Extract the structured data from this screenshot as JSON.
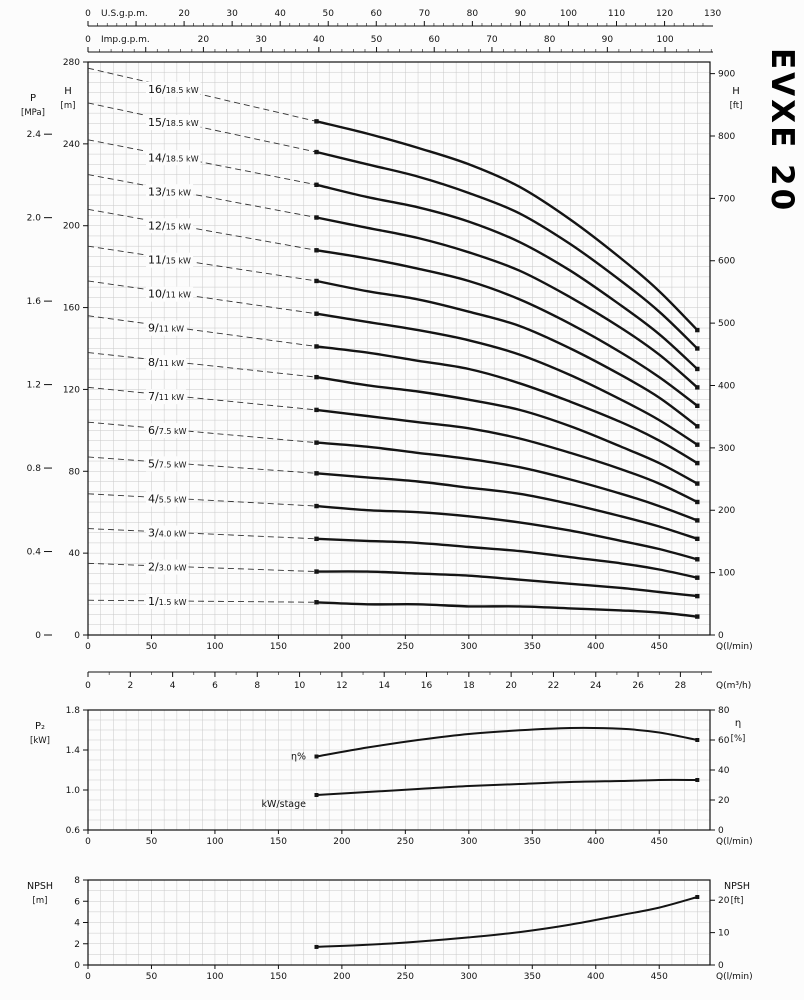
{
  "title": "EVXE 20",
  "chart_data": [
    {
      "name": "head-capacity-curves",
      "type": "line",
      "x": {
        "label": "Q(l/min)",
        "min": 0,
        "max": 490,
        "ticks": [
          0,
          50,
          100,
          150,
          200,
          250,
          300,
          350,
          400,
          450
        ]
      },
      "x_m3h": {
        "label": "Q(m³/h)",
        "lmin_per_unit": 16.667,
        "ticks": [
          0,
          2,
          4,
          6,
          8,
          10,
          12,
          14,
          16,
          18,
          20,
          22,
          24,
          26,
          28
        ]
      },
      "x_usgpm": {
        "label": "U.S.g.p.m.",
        "lmin_per_unit": 3.785,
        "ticks": [
          0,
          20,
          30,
          40,
          50,
          60,
          70,
          80,
          90,
          100,
          110,
          120,
          130
        ]
      },
      "x_impgpm": {
        "label": "Imp.g.p.m.",
        "lmin_per_unit": 4.546,
        "ticks": [
          0,
          20,
          30,
          40,
          50,
          60,
          70,
          80,
          90,
          100
        ]
      },
      "y_m": {
        "label_top": "H",
        "label_unit": "[m]",
        "min": 0,
        "max": 280,
        "ticks": [
          0,
          40,
          80,
          120,
          160,
          200,
          240,
          280
        ]
      },
      "y_mpa": {
        "label_top": "P",
        "label_unit": "[MPa]",
        "m_per_unit": 101.97,
        "ticks": [
          "0",
          "0.4",
          "0.8",
          "1.2",
          "1.6",
          "2.0",
          "2.4"
        ]
      },
      "y_ft": {
        "label_top": "H",
        "label_unit": "[ft]",
        "m_per_unit": 0.3048,
        "ticks": [
          0,
          100,
          200,
          300,
          400,
          500,
          600,
          700,
          800,
          900
        ]
      },
      "q_solid_lmin": [
        180,
        220,
        260,
        300,
        340,
        380,
        420,
        450,
        480
      ],
      "curves": [
        {
          "stage": "16/",
          "power": "18.5 kW",
          "shutoff_head_m": 277,
          "heads_m": [
            251,
            245,
            238,
            230,
            219,
            203,
            184,
            168,
            149
          ]
        },
        {
          "stage": "15/",
          "power": "18.5 kW",
          "shutoff_head_m": 260,
          "heads_m": [
            236,
            230,
            224,
            216,
            206,
            191,
            173,
            158,
            140
          ]
        },
        {
          "stage": "14/",
          "power": "18.5 kW",
          "shutoff_head_m": 242,
          "heads_m": [
            220,
            214,
            209,
            202,
            192,
            178,
            161,
            147,
            130
          ]
        },
        {
          "stage": "13/",
          "power": "15 kW",
          "shutoff_head_m": 225,
          "heads_m": [
            204,
            199,
            194,
            187,
            178,
            165,
            150,
            137,
            121
          ]
        },
        {
          "stage": "12/",
          "power": "15 kW",
          "shutoff_head_m": 208,
          "heads_m": [
            188,
            184,
            179,
            173,
            164,
            152,
            138,
            126,
            112
          ]
        },
        {
          "stage": "11/",
          "power": "15 kW",
          "shutoff_head_m": 190,
          "heads_m": [
            173,
            168,
            164,
            158,
            151,
            140,
            127,
            116,
            102
          ]
        },
        {
          "stage": "10/",
          "power": "11 kW",
          "shutoff_head_m": 173,
          "heads_m": [
            157,
            153,
            149,
            144,
            137,
            127,
            115,
            105,
            93
          ]
        },
        {
          "stage": "9/",
          "power": "11 kW",
          "shutoff_head_m": 156,
          "heads_m": [
            141,
            138,
            134,
            130,
            123,
            114,
            104,
            95,
            84
          ]
        },
        {
          "stage": "8/",
          "power": "11 kW",
          "shutoff_head_m": 138,
          "heads_m": [
            126,
            122,
            119,
            115,
            110,
            102,
            92,
            84,
            74
          ]
        },
        {
          "stage": "7/",
          "power": "11 kW",
          "shutoff_head_m": 121,
          "heads_m": [
            110,
            107,
            104,
            101,
            96,
            89,
            81,
            74,
            65
          ]
        },
        {
          "stage": "6/",
          "power": "7.5 kW",
          "shutoff_head_m": 104,
          "heads_m": [
            94,
            92,
            89,
            86,
            82,
            76,
            69,
            63,
            56
          ]
        },
        {
          "stage": "5/",
          "power": "7.5 kW",
          "shutoff_head_m": 87,
          "heads_m": [
            79,
            77,
            75,
            72,
            69,
            64,
            58,
            53,
            47
          ]
        },
        {
          "stage": "4/",
          "power": "5.5 kW",
          "shutoff_head_m": 69,
          "heads_m": [
            63,
            61,
            60,
            58,
            55,
            51,
            46,
            42,
            37
          ]
        },
        {
          "stage": "3/",
          "power": "4.0 kW",
          "shutoff_head_m": 52,
          "heads_m": [
            47,
            46,
            45,
            43,
            41,
            38,
            35,
            32,
            28
          ]
        },
        {
          "stage": "2/",
          "power": "3.0 kW",
          "shutoff_head_m": 35,
          "heads_m": [
            31,
            31,
            30,
            29,
            27,
            25,
            23,
            21,
            19
          ]
        },
        {
          "stage": "1/",
          "power": "1.5 kW",
          "shutoff_head_m": 17,
          "heads_m": [
            16,
            15,
            15,
            14,
            14,
            13,
            12,
            11,
            9
          ]
        }
      ]
    },
    {
      "name": "power-efficiency",
      "type": "line",
      "x": {
        "label": "Q(l/min)",
        "min": 0,
        "max": 490,
        "ticks": [
          0,
          50,
          100,
          150,
          200,
          250,
          300,
          350,
          400,
          450
        ]
      },
      "y_kw": {
        "label_top": "P₂",
        "label_unit": "[kW]",
        "min": 0.6,
        "max": 1.8,
        "ticks": [
          "0.6",
          "1.0",
          "1.4",
          "1.8"
        ]
      },
      "y_eta": {
        "label_top": "η",
        "label_unit": "[%]",
        "min": 0,
        "max": 80,
        "ticks": [
          0,
          20,
          40,
          60,
          80
        ]
      },
      "q_lmin": [
        180,
        220,
        260,
        300,
        340,
        380,
        420,
        450,
        480
      ],
      "series": [
        {
          "name": "η%",
          "axis": "eta",
          "values": [
            49,
            55,
            60,
            64,
            66.5,
            68,
            67.5,
            65,
            60
          ]
        },
        {
          "name": "kW/stage",
          "axis": "kw",
          "values": [
            0.95,
            0.98,
            1.01,
            1.04,
            1.06,
            1.08,
            1.09,
            1.1,
            1.1
          ]
        }
      ]
    },
    {
      "name": "npsh",
      "type": "line",
      "x": {
        "label": "Q(l/min)",
        "min": 0,
        "max": 490,
        "ticks": [
          0,
          50,
          100,
          150,
          200,
          250,
          300,
          350,
          400,
          450
        ]
      },
      "y_m": {
        "label_top": "NPSH",
        "label_unit": "[m]",
        "min": 0,
        "max": 8,
        "ticks": [
          0,
          2,
          4,
          6,
          8
        ]
      },
      "y_ft": {
        "label_top": "NPSH",
        "label_unit": "[ft]",
        "m_per_unit": 0.3048,
        "ticks": [
          0,
          10,
          20
        ]
      },
      "q_lmin": [
        180,
        220,
        260,
        300,
        340,
        380,
        420,
        450,
        480
      ],
      "values_m": [
        1.7,
        1.9,
        2.2,
        2.6,
        3.1,
        3.8,
        4.7,
        5.4,
        6.4
      ]
    }
  ]
}
